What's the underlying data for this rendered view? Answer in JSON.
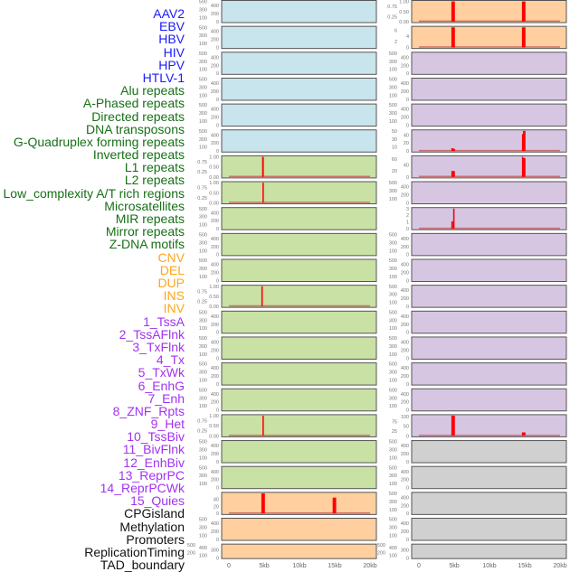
{
  "track_labels": [
    {
      "text": "AAV2",
      "group": "virus"
    },
    {
      "text": "EBV",
      "group": "virus"
    },
    {
      "text": "HBV",
      "group": "virus"
    },
    {
      "text": "HIV",
      "group": "virus"
    },
    {
      "text": "HPV",
      "group": "virus"
    },
    {
      "text": "HTLV-1",
      "group": "virus"
    },
    {
      "text": "Alu repeats",
      "group": "repeat"
    },
    {
      "text": "A-Phased repeats",
      "group": "repeat"
    },
    {
      "text": "Directed repeats",
      "group": "repeat"
    },
    {
      "text": "DNA transposons",
      "group": "repeat"
    },
    {
      "text": "G-Quadruplex forming repeats",
      "group": "repeat"
    },
    {
      "text": "Inverted repeats",
      "group": "repeat"
    },
    {
      "text": "L1 repeats",
      "group": "repeat"
    },
    {
      "text": "L2 repeats",
      "group": "repeat"
    },
    {
      "text": "Low_complexity A/T rich regions",
      "group": "repeat"
    },
    {
      "text": "Microsatellites",
      "group": "repeat"
    },
    {
      "text": "MIR repeats",
      "group": "repeat"
    },
    {
      "text": "Mirror repeats",
      "group": "repeat"
    },
    {
      "text": "Z-DNA motifs",
      "group": "repeat"
    },
    {
      "text": "CNV",
      "group": "sv"
    },
    {
      "text": "DEL",
      "group": "sv"
    },
    {
      "text": "DUP",
      "group": "sv"
    },
    {
      "text": "INS",
      "group": "sv"
    },
    {
      "text": "INV",
      "group": "sv"
    },
    {
      "text": "1_TssA",
      "group": "chromhmm"
    },
    {
      "text": "2_TssAFlnk",
      "group": "chromhmm"
    },
    {
      "text": "3_TxFlnk",
      "group": "chromhmm"
    },
    {
      "text": "4_Tx",
      "group": "chromhmm"
    },
    {
      "text": "5_TxWk",
      "group": "chromhmm"
    },
    {
      "text": "6_EnhG",
      "group": "chromhmm"
    },
    {
      "text": "7_Enh",
      "group": "chromhmm"
    },
    {
      "text": "8_ZNF_Rpts",
      "group": "chromhmm"
    },
    {
      "text": "9_Het",
      "group": "chromhmm"
    },
    {
      "text": "10_TssBiv",
      "group": "chromhmm"
    },
    {
      "text": "11_BivFlnk",
      "group": "chromhmm"
    },
    {
      "text": "12_EnhBiv",
      "group": "chromhmm"
    },
    {
      "text": "13_ReprPC",
      "group": "chromhmm"
    },
    {
      "text": "14_ReprPCWk",
      "group": "chromhmm"
    },
    {
      "text": "15_Quies",
      "group": "chromhmm"
    },
    {
      "text": "CPGisland",
      "group": "other"
    },
    {
      "text": "Methylation",
      "group": "other"
    },
    {
      "text": "Promoters",
      "group": "other"
    },
    {
      "text": "ReplicationTiming",
      "group": "other"
    },
    {
      "text": "TAD_boundary",
      "group": "other"
    }
  ],
  "colors": {
    "label": {
      "virus": "#1a1aff",
      "repeat": "#167016",
      "sv": "#ffa51a",
      "chromhmm": "#a332f0",
      "other": "#111111"
    },
    "fill": {
      "blue": "#c8e4ec",
      "green": "#c9e1a5",
      "orange": "#ffcf9f",
      "purple": "#d6c6e2",
      "grey": "#d0d0d0"
    },
    "bar": "#ff0000",
    "baseline": "#c85a5a"
  },
  "chart_data": {
    "type": "bar",
    "xlabel": "",
    "ylabel": "",
    "xlim_kb": [
      0,
      20
    ],
    "x_ticks": [
      {
        "value": 0,
        "label": "0"
      },
      {
        "value": 5,
        "label": "5kb"
      },
      {
        "value": 10,
        "label": "10kb"
      },
      {
        "value": 15,
        "label": "15kb"
      },
      {
        "value": 20,
        "label": "20kb"
      }
    ],
    "tick_sets": {
      "e": {
        "ticks": [
          "0",
          "100",
          "200",
          "300",
          "400",
          "500"
        ],
        "values": [
          0,
          100,
          200,
          300,
          400,
          500
        ],
        "ylim": [
          0,
          500
        ]
      },
      "u": {
        "ticks": [
          "0.00",
          "0.25",
          "0.50",
          "0.75",
          "1.00"
        ],
        "values": [
          0,
          0.25,
          0.5,
          0.75,
          1
        ],
        "ylim": [
          0,
          1
        ]
      },
      "r1": {
        "ticks": [
          "0",
          "2",
          "4",
          "6"
        ],
        "values": [
          0,
          2,
          4,
          6
        ],
        "ylim": [
          0,
          7
        ]
      },
      "r5": {
        "ticks": [
          "0",
          "10",
          "20",
          "30",
          "40",
          "50"
        ],
        "values": [
          0,
          10,
          20,
          30,
          40,
          50
        ],
        "ylim": [
          0,
          50
        ]
      },
      "r6": {
        "ticks": [
          "0",
          "20",
          "40",
          "60"
        ],
        "values": [
          0,
          20,
          40,
          60
        ],
        "ylim": [
          0,
          68
        ]
      },
      "r8": {
        "ticks": [
          "0",
          "1",
          "2",
          "3"
        ],
        "values": [
          0,
          1,
          2,
          3
        ],
        "ylim": [
          0,
          3
        ]
      },
      "r16": {
        "ticks": [
          "0",
          "25",
          "50",
          "75",
          "100"
        ],
        "values": [
          0,
          25,
          50,
          75,
          100
        ],
        "ylim": [
          0,
          105
        ]
      },
      "l19": {
        "ticks": [
          "0",
          "20",
          "40"
        ],
        "values": [
          0,
          20,
          40
        ],
        "ylim": [
          0,
          57
        ]
      }
    },
    "columns": [
      [
        {
          "fill": "blue",
          "ticks": "e",
          "bars": []
        },
        {
          "fill": "blue",
          "ticks": "e",
          "bars": []
        },
        {
          "fill": "blue",
          "ticks": "e",
          "bars": []
        },
        {
          "fill": "blue",
          "ticks": "e",
          "bars": []
        },
        {
          "fill": "blue",
          "ticks": "e",
          "bars": []
        },
        {
          "fill": "blue",
          "ticks": "e",
          "bars": []
        },
        {
          "fill": "green",
          "ticks": "u",
          "bars": [
            {
              "start": 4.7,
              "end": 4.95,
              "value": 1
            }
          ]
        },
        {
          "fill": "green",
          "ticks": "u",
          "bars": [
            {
              "start": 4.75,
              "end": 4.95,
              "value": 1
            }
          ]
        },
        {
          "fill": "green",
          "ticks": "e",
          "bars": []
        },
        {
          "fill": "green",
          "ticks": "e",
          "bars": []
        },
        {
          "fill": "green",
          "ticks": "e",
          "bars": []
        },
        {
          "fill": "green",
          "ticks": "u",
          "bars": [
            {
              "start": 4.6,
              "end": 4.8,
              "value": 1
            }
          ]
        },
        {
          "fill": "green",
          "ticks": "e",
          "bars": []
        },
        {
          "fill": "green",
          "ticks": "e",
          "bars": []
        },
        {
          "fill": "green",
          "ticks": "e",
          "bars": []
        },
        {
          "fill": "green",
          "ticks": "e",
          "bars": []
        },
        {
          "fill": "green",
          "ticks": "u",
          "bars": [
            {
              "start": 4.75,
              "end": 4.95,
              "value": 1
            }
          ]
        },
        {
          "fill": "green",
          "ticks": "e",
          "bars": []
        },
        {
          "fill": "green",
          "ticks": "e",
          "bars": []
        },
        {
          "fill": "orange",
          "ticks": "l19",
          "bars": [
            {
              "start": 4.6,
              "end": 5.1,
              "value": 57
            },
            {
              "start": 14.7,
              "end": 15.2,
              "value": 45
            }
          ]
        },
        {
          "fill": "orange",
          "ticks": "e",
          "bars": []
        },
        {
          "fill": "orange",
          "ticks": "e",
          "bars": []
        }
      ],
      [
        {
          "fill": "orange",
          "ticks": "u",
          "bars": [
            {
              "start": 4.6,
              "end": 5.1,
              "value": 1
            },
            {
              "start": 14.6,
              "end": 15.1,
              "value": 1
            }
          ]
        },
        {
          "fill": "orange",
          "ticks": "r1",
          "bars": [
            {
              "start": 4.6,
              "end": 5.1,
              "value": 7
            },
            {
              "start": 14.6,
              "end": 15.1,
              "value": 7
            }
          ]
        },
        {
          "fill": "purple",
          "ticks": "e",
          "bars": []
        },
        {
          "fill": "purple",
          "ticks": "e",
          "bars": []
        },
        {
          "fill": "purple",
          "ticks": "e",
          "bars": []
        },
        {
          "fill": "purple",
          "ticks": "r5",
          "bars": [
            {
              "start": 4.6,
              "end": 4.95,
              "value": 7
            },
            {
              "start": 4.95,
              "end": 5.1,
              "value": 5
            },
            {
              "start": 14.6,
              "end": 14.75,
              "value": 42
            },
            {
              "start": 14.75,
              "end": 15.1,
              "value": 50
            }
          ]
        },
        {
          "fill": "purple",
          "ticks": "r6",
          "bars": [
            {
              "start": 4.6,
              "end": 5.1,
              "value": 20
            },
            {
              "start": 14.6,
              "end": 14.75,
              "value": 68
            },
            {
              "start": 14.75,
              "end": 15.1,
              "value": 64
            }
          ]
        },
        {
          "fill": "purple",
          "ticks": "e",
          "bars": []
        },
        {
          "fill": "purple",
          "ticks": "r8",
          "bars": [
            {
              "start": 4.6,
              "end": 4.85,
              "value": 1.1
            },
            {
              "start": 4.85,
              "end": 5.05,
              "value": 3
            }
          ]
        },
        {
          "fill": "purple",
          "ticks": "e",
          "bars": []
        },
        {
          "fill": "purple",
          "ticks": "e",
          "bars": []
        },
        {
          "fill": "purple",
          "ticks": "e",
          "bars": []
        },
        {
          "fill": "purple",
          "ticks": "e",
          "bars": []
        },
        {
          "fill": "purple",
          "ticks": "e",
          "bars": []
        },
        {
          "fill": "purple",
          "ticks": "e",
          "bars": []
        },
        {
          "fill": "purple",
          "ticks": "e",
          "bars": []
        },
        {
          "fill": "purple",
          "ticks": "r16",
          "bars": [
            {
              "start": 4.6,
              "end": 5.1,
              "value": 105
            },
            {
              "start": 14.6,
              "end": 15.1,
              "value": 18
            }
          ]
        },
        {
          "fill": "grey",
          "ticks": "e",
          "bars": []
        },
        {
          "fill": "grey",
          "ticks": "e",
          "bars": []
        },
        {
          "fill": "grey",
          "ticks": "e",
          "bars": []
        },
        {
          "fill": "grey",
          "ticks": "e",
          "bars": []
        },
        {
          "fill": "grey",
          "ticks": "e",
          "bars": []
        }
      ]
    ]
  }
}
